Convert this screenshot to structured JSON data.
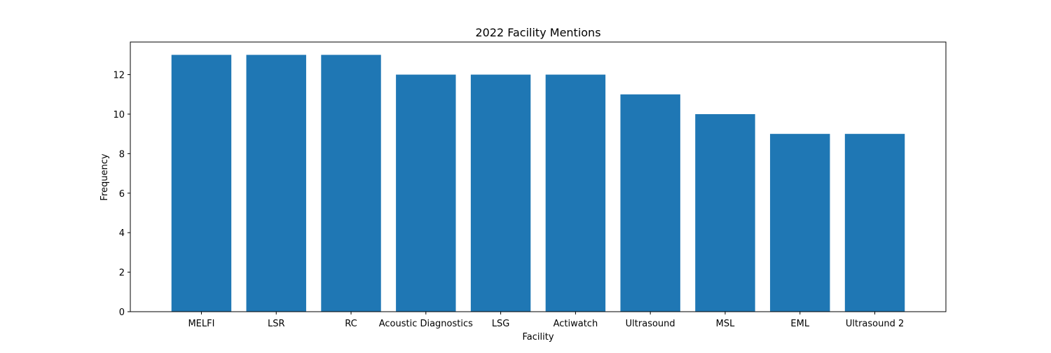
{
  "chart_data": {
    "type": "bar",
    "title": "2022 Facility Mentions",
    "xlabel": "Facility",
    "ylabel": "Frequency",
    "categories": [
      "MELFI",
      "LSR",
      "RC",
      "Acoustic Diagnostics",
      "LSG",
      "Actiwatch",
      "Ultrasound",
      "MSL",
      "EML",
      "Ultrasound 2"
    ],
    "values": [
      13,
      13,
      13,
      12,
      12,
      12,
      11,
      10,
      9,
      9
    ],
    "ylim": [
      0,
      13.65
    ],
    "yticks": [
      0,
      2,
      4,
      6,
      8,
      10,
      12
    ],
    "grid": false,
    "bar_color": "#1f77b4"
  }
}
